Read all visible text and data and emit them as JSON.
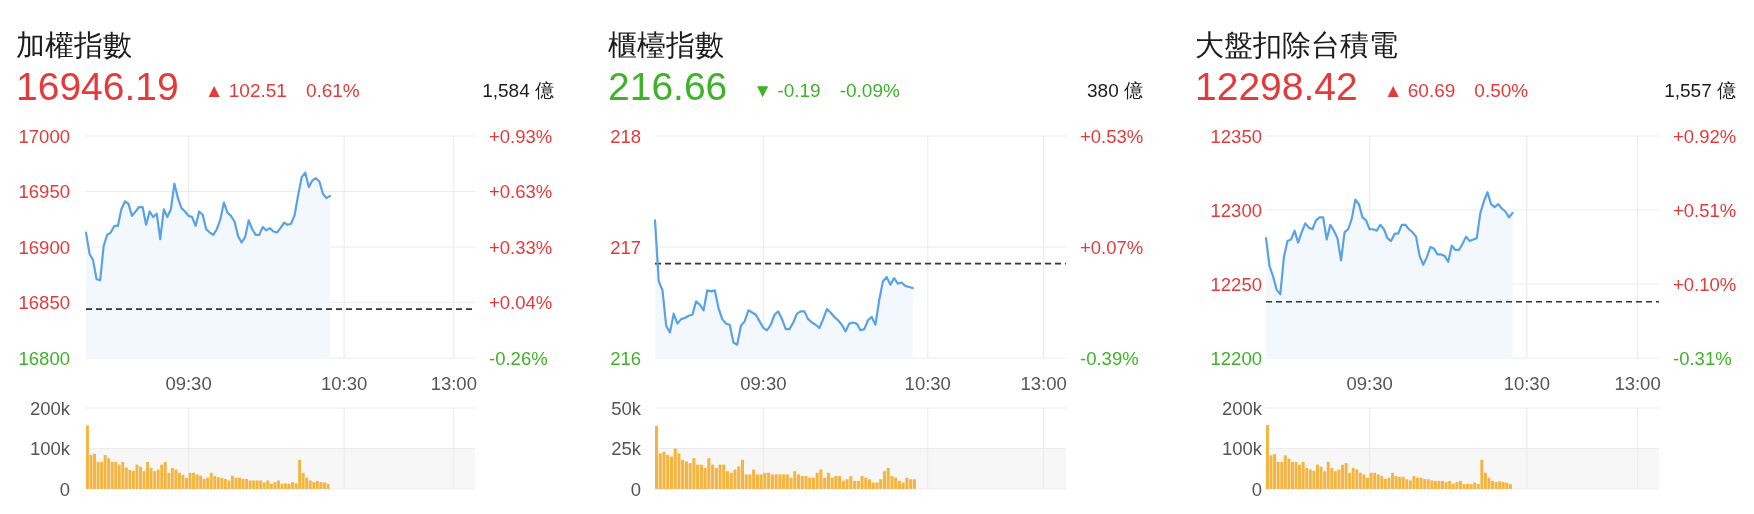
{
  "chart_data": [
    {
      "type": "area",
      "title": "加權指數",
      "subtitle": "16946.19",
      "annotations": [
        "▲ 102.51",
        "0.61%",
        "1,584 億"
      ],
      "categories": [
        null,
        null,
        null,
        null,
        null,
        null,
        null,
        null,
        null,
        null,
        null,
        null,
        null,
        null,
        null,
        null,
        null,
        null,
        null,
        null,
        null,
        null,
        null,
        null,
        null,
        null,
        null,
        null,
        null,
        "09:30",
        null,
        null,
        null,
        null,
        null,
        null,
        null,
        null,
        null,
        null,
        null,
        null,
        null,
        null,
        null,
        null,
        null,
        null,
        null,
        null,
        null,
        null,
        null,
        null,
        null,
        null,
        null,
        null,
        null,
        null,
        null,
        null,
        null,
        null,
        null,
        null,
        null,
        null,
        null,
        null,
        null,
        null,
        null,
        "10:30",
        null,
        null,
        null,
        null,
        null,
        null,
        null,
        null,
        null,
        null,
        null,
        null,
        null,
        null,
        null,
        null,
        null,
        null,
        null,
        null,
        null,
        null,
        null,
        null,
        null,
        null,
        null,
        null,
        null,
        null,
        "13:00",
        null,
        null,
        null,
        null,
        null
      ],
      "series": [
        {
          "color": "#5aa2e6",
          "values": [
            16913,
            16894,
            16888,
            16871,
            16870,
            16901,
            16911,
            16913,
            16919,
            16919,
            16934,
            16941,
            16939,
            16928,
            16932,
            16936,
            16936,
            16920,
            16932,
            16927,
            16930,
            16907,
            16934,
            16927,
            16934,
            16957,
            16944,
            16935,
            16932,
            16928,
            16927,
            16919,
            16932,
            16929,
            16916,
            16913,
            16911,
            16916,
            16925,
            16940,
            16931,
            16928,
            16923,
            16910,
            16904,
            16909,
            16924,
            16916,
            16911,
            16911,
            16918,
            16915,
            16917,
            16914,
            16913,
            16917,
            16922,
            16920,
            16921,
            16929,
            16947,
            16963,
            16967,
            16954,
            16960,
            16962,
            16959,
            16948,
            16944,
            16946,
            null,
            null,
            null,
            null,
            null,
            null,
            null,
            null,
            null,
            null,
            null,
            null,
            null,
            null,
            null,
            null,
            null,
            null,
            null,
            null,
            null,
            null,
            null,
            null,
            null,
            null,
            null,
            null,
            null,
            null,
            null,
            null,
            null,
            null,
            null,
            null,
            null,
            null,
            null,
            null
          ]
        },
        {
          "type": "bar",
          "axis": "y3",
          "color": "#f4b43f",
          "values": [
            157000,
            84000,
            87000,
            67000,
            67000,
            84000,
            76000,
            67000,
            67000,
            60000,
            67000,
            53000,
            47000,
            45000,
            60000,
            55000,
            44000,
            67000,
            52000,
            44000,
            48000,
            60000,
            67000,
            40000,
            52000,
            48000,
            40000,
            35000,
            27000,
            40000,
            40000,
            36000,
            33000,
            25000,
            28000,
            40000,
            32000,
            29000,
            27000,
            25000,
            21000,
            33000,
            28000,
            28000,
            25000,
            25000,
            21000,
            21000,
            21000,
            21000,
            16000,
            21000,
            13000,
            17000,
            21000,
            13000,
            14000,
            13000,
            17000,
            14000,
            72000,
            40000,
            28000,
            21000,
            17000,
            20000,
            17000,
            16000,
            13000,
            null,
            null,
            null,
            null,
            null,
            null,
            null,
            null,
            null,
            null,
            null,
            null,
            null,
            null,
            null,
            null,
            null,
            null,
            null,
            null,
            null,
            null,
            null,
            null,
            null,
            null,
            null,
            null,
            null,
            null,
            null,
            null,
            null,
            null,
            null,
            null,
            null,
            null,
            null,
            null,
            null
          ]
        }
      ],
      "ylim": [
        16800,
        17000
      ],
      "yticks": [
        16800,
        16850,
        16900,
        16950,
        17000
      ],
      "y2lim": [
        -0.26,
        0.93
      ],
      "y2ticks": [
        {
          "value": -0.26,
          "label": "-0.26%"
        },
        {
          "value": 0.04,
          "label": "+0.04%"
        },
        {
          "value": 0.33,
          "label": "+0.33%"
        },
        {
          "value": 0.63,
          "label": "+0.63%"
        },
        {
          "value": 0.93,
          "label": "+0.93%"
        }
      ],
      "y3lim": [
        0,
        200000
      ],
      "y3ticks": [
        {
          "value": 0,
          "label": "0"
        },
        {
          "value": 100000,
          "label": "100k"
        },
        {
          "value": 200000,
          "label": "200k"
        }
      ],
      "ref_lines": [
        {
          "axis": "y",
          "value": 16844,
          "color": "#333333",
          "line_style": "dashed"
        }
      ],
      "bands": [
        {
          "axis": "y3",
          "from": 0,
          "to": 100000,
          "color": "#f7f7f7"
        }
      ],
      "grid": true
    },
    {
      "type": "area",
      "title": "櫃檯指數",
      "subtitle": "216.66",
      "annotations": [
        "▼ -0.19",
        "-0.09%",
        "380 億"
      ],
      "categories": [
        null,
        null,
        null,
        null,
        null,
        null,
        null,
        null,
        null,
        null,
        null,
        null,
        null,
        null,
        null,
        null,
        null,
        null,
        null,
        null,
        null,
        null,
        null,
        null,
        null,
        null,
        null,
        null,
        null,
        "09:30",
        null,
        null,
        null,
        null,
        null,
        null,
        null,
        null,
        null,
        null,
        null,
        null,
        null,
        null,
        null,
        null,
        null,
        null,
        null,
        null,
        null,
        null,
        null,
        null,
        null,
        null,
        null,
        null,
        null,
        null,
        null,
        null,
        null,
        null,
        null,
        null,
        null,
        null,
        null,
        null,
        null,
        null,
        null,
        "10:30",
        null,
        null,
        null,
        null,
        null,
        null,
        null,
        null,
        null,
        null,
        null,
        null,
        null,
        null,
        null,
        null,
        null,
        null,
        null,
        null,
        null,
        null,
        null,
        null,
        null,
        null,
        null,
        null,
        null,
        null,
        "13:00",
        null,
        null,
        null,
        null,
        null
      ],
      "series": [
        {
          "color": "#5aa2e6",
          "values": [
            217.24,
            216.69,
            216.61,
            216.29,
            216.23,
            216.4,
            216.31,
            216.35,
            216.36,
            216.38,
            216.39,
            216.51,
            216.48,
            216.43,
            216.61,
            216.6,
            216.61,
            216.45,
            216.35,
            216.31,
            216.3,
            216.14,
            216.12,
            216.29,
            216.33,
            216.43,
            216.41,
            216.39,
            216.33,
            216.27,
            216.25,
            216.3,
            216.39,
            216.42,
            216.35,
            216.26,
            216.26,
            216.32,
            216.4,
            216.42,
            216.42,
            216.35,
            216.32,
            216.3,
            216.27,
            216.35,
            216.44,
            216.41,
            216.37,
            216.34,
            216.3,
            216.24,
            216.31,
            216.32,
            216.31,
            216.25,
            216.26,
            216.34,
            216.37,
            216.3,
            216.52,
            216.69,
            216.73,
            216.66,
            216.72,
            216.67,
            216.68,
            216.65,
            216.64,
            216.63,
            null,
            null,
            null,
            null,
            null,
            null,
            null,
            null,
            null,
            null,
            null,
            null,
            null,
            null,
            null,
            null,
            null,
            null,
            null,
            null,
            null,
            null,
            null,
            null,
            null,
            null,
            null,
            null,
            null,
            null,
            null,
            null,
            null,
            null,
            null,
            null,
            null,
            null,
            null,
            null
          ]
        },
        {
          "type": "bar",
          "axis": "y3",
          "color": "#f4b43f",
          "values": [
            39000,
            22000,
            23000,
            21000,
            20000,
            25000,
            22000,
            18000,
            17000,
            16000,
            19000,
            15000,
            15000,
            13000,
            19000,
            15000,
            13000,
            15000,
            15000,
            11000,
            10000,
            12000,
            14000,
            18000,
            9000,
            9000,
            12000,
            9000,
            9000,
            10000,
            10000,
            9000,
            9000,
            9000,
            9000,
            9000,
            7000,
            11000,
            9000,
            8000,
            8000,
            7000,
            7000,
            10000,
            12000,
            7000,
            10000,
            7000,
            8000,
            8000,
            5000,
            6000,
            8000,
            5000,
            5000,
            8000,
            7000,
            6000,
            4000,
            4000,
            6000,
            11000,
            13000,
            8000,
            7000,
            5000,
            4000,
            7000,
            6000,
            6000,
            null,
            null,
            null,
            null,
            null,
            null,
            null,
            null,
            null,
            null,
            null,
            null,
            null,
            null,
            null,
            null,
            null,
            null,
            null,
            null,
            null,
            null,
            null,
            null,
            null,
            null,
            null,
            null,
            null,
            null,
            null,
            null,
            null,
            null,
            null,
            null,
            null,
            null,
            null,
            null
          ]
        }
      ],
      "ylim": [
        216,
        218
      ],
      "yticks": [
        216,
        217,
        218
      ],
      "y2lim": [
        -0.39,
        0.53
      ],
      "y2ticks": [
        {
          "value": -0.39,
          "label": "-0.39%"
        },
        {
          "value": 0.07,
          "label": "+0.07%"
        },
        {
          "value": 0.53,
          "label": "+0.53%"
        }
      ],
      "y3lim": [
        0,
        50000
      ],
      "y3ticks": [
        {
          "value": 0,
          "label": "0"
        },
        {
          "value": 25000,
          "label": "25k"
        },
        {
          "value": 50000,
          "label": "50k"
        }
      ],
      "ref_lines": [
        {
          "axis": "y",
          "value": 216.85,
          "color": "#333333",
          "line_style": "dashed"
        }
      ],
      "bands": [
        {
          "axis": "y3",
          "from": 0,
          "to": 25000,
          "color": "#f7f7f7"
        }
      ],
      "grid": true
    },
    {
      "type": "area",
      "title": "大盤扣除台積電",
      "subtitle": "12298.42",
      "annotations": [
        "▲ 60.69",
        "0.50%",
        "1,557 億"
      ],
      "categories": [
        null,
        null,
        null,
        null,
        null,
        null,
        null,
        null,
        null,
        null,
        null,
        null,
        null,
        null,
        null,
        null,
        null,
        null,
        null,
        null,
        null,
        null,
        null,
        null,
        null,
        null,
        null,
        null,
        null,
        "09:30",
        null,
        null,
        null,
        null,
        null,
        null,
        null,
        null,
        null,
        null,
        null,
        null,
        null,
        null,
        null,
        null,
        null,
        null,
        null,
        null,
        null,
        null,
        null,
        null,
        null,
        null,
        null,
        null,
        null,
        null,
        null,
        null,
        null,
        null,
        null,
        null,
        null,
        null,
        null,
        null,
        null,
        null,
        null,
        "10:30",
        null,
        null,
        null,
        null,
        null,
        null,
        null,
        null,
        null,
        null,
        null,
        null,
        null,
        null,
        null,
        null,
        null,
        null,
        null,
        null,
        null,
        null,
        null,
        null,
        null,
        null,
        null,
        null,
        null,
        null,
        "13:00",
        null,
        null,
        null,
        null,
        null
      ],
      "series": [
        {
          "color": "#5aa2e6",
          "values": [
            12281,
            12262,
            12255,
            12246,
            12243,
            12268,
            12279,
            12280,
            12286,
            12278,
            12285,
            12291,
            12288,
            12287,
            12293,
            12295,
            12295,
            12280,
            12290,
            12286,
            12281,
            12266,
            12285,
            12287,
            12294,
            12307,
            12304,
            12295,
            12293,
            12287,
            12287,
            12286,
            12290,
            12287,
            12281,
            12279,
            12284,
            12284,
            12290,
            12290,
            12287,
            12285,
            12282,
            12269,
            12263,
            12268,
            12275,
            12274,
            12270,
            12270,
            12269,
            12265,
            12276,
            12273,
            12273,
            12277,
            12282,
            12279,
            12280,
            12281,
            12298,
            12306,
            12312,
            12304,
            12302,
            12304,
            12301,
            12299,
            12295,
            12298,
            null,
            null,
            null,
            null,
            null,
            null,
            null,
            null,
            null,
            null,
            null,
            null,
            null,
            null,
            null,
            null,
            null,
            null,
            null,
            null,
            null,
            null,
            null,
            null,
            null,
            null,
            null,
            null,
            null,
            null,
            null,
            null,
            null,
            null,
            null,
            null,
            null,
            null,
            null,
            null
          ]
        },
        {
          "type": "bar",
          "axis": "y3",
          "color": "#f4b43f",
          "values": [
            158000,
            83000,
            86000,
            67000,
            67000,
            83000,
            75000,
            67000,
            67000,
            60000,
            67000,
            52000,
            48000,
            45000,
            60000,
            55000,
            44000,
            67000,
            52000,
            44000,
            48000,
            60000,
            64000,
            40000,
            52000,
            48000,
            40000,
            36000,
            28000,
            40000,
            40000,
            36000,
            32000,
            25000,
            28000,
            40000,
            32000,
            30000,
            30000,
            24000,
            21000,
            32000,
            28000,
            28000,
            25000,
            24000,
            21000,
            20000,
            20000,
            20000,
            17000,
            20000,
            13000,
            17000,
            20000,
            12000,
            13000,
            12000,
            16000,
            12000,
            72000,
            40000,
            28000,
            20000,
            17000,
            19000,
            17000,
            16000,
            12000,
            null,
            null,
            null,
            null,
            null,
            null,
            null,
            null,
            null,
            null,
            null,
            null,
            null,
            null,
            null,
            null,
            null,
            null,
            null,
            null,
            null,
            null,
            null,
            null,
            null,
            null,
            null,
            null,
            null,
            null,
            null,
            null,
            null,
            null,
            null,
            null,
            null,
            null,
            null,
            null,
            null
          ]
        }
      ],
      "ylim": [
        12200,
        12350
      ],
      "yticks": [
        12200,
        12250,
        12300,
        12350
      ],
      "y2lim": [
        -0.31,
        0.92
      ],
      "y2ticks": [
        {
          "value": -0.31,
          "label": "-0.31%"
        },
        {
          "value": 0.1,
          "label": "+0.10%"
        },
        {
          "value": 0.51,
          "label": "+0.51%"
        },
        {
          "value": 0.92,
          "label": "+0.92%"
        }
      ],
      "y3lim": [
        0,
        200000
      ],
      "y3ticks": [
        {
          "value": 0,
          "label": "0"
        },
        {
          "value": 100000,
          "label": "100k"
        },
        {
          "value": 200000,
          "label": "200k"
        }
      ],
      "ref_lines": [
        {
          "axis": "y",
          "value": 12238,
          "color": "#333333",
          "line_style": "dashed"
        }
      ],
      "bands": [
        {
          "axis": "y3",
          "from": 0,
          "to": 100000,
          "color": "#f7f7f7"
        }
      ],
      "grid": true
    }
  ]
}
